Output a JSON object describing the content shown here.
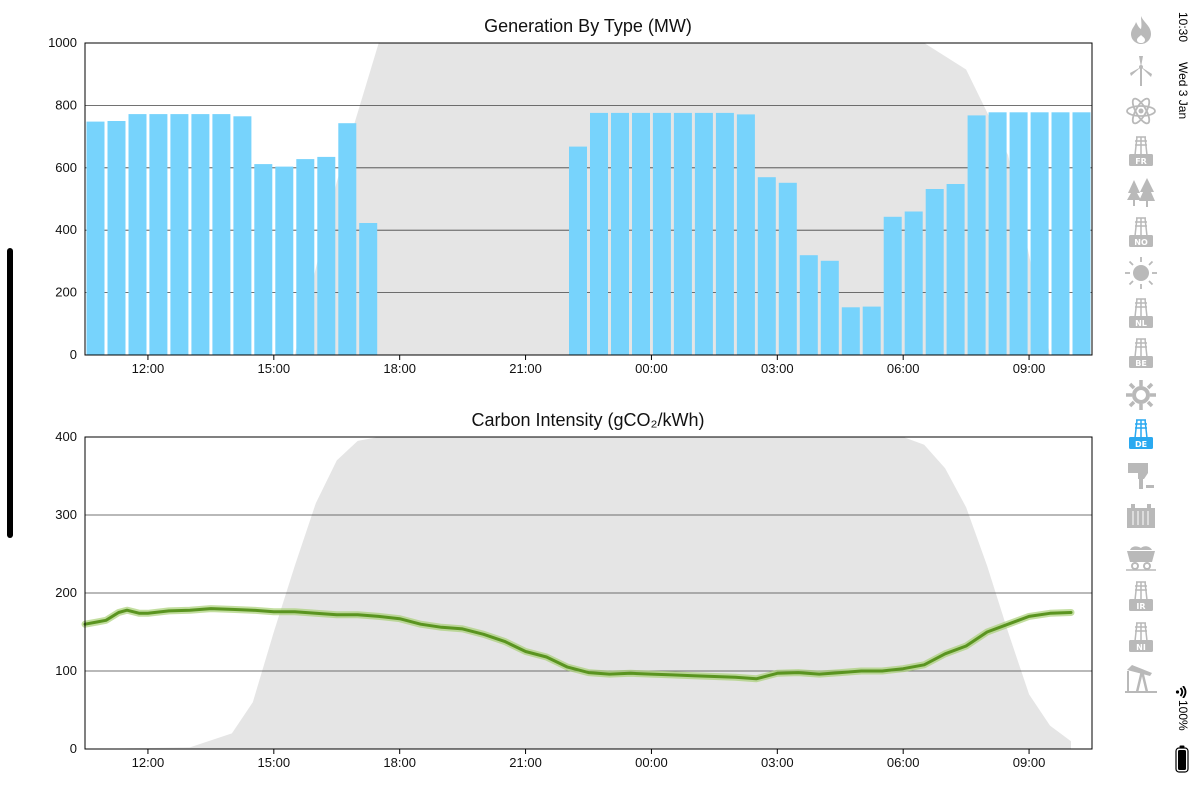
{
  "status_bar": {
    "time": "10:30",
    "date": "Wed 3 Jan",
    "battery": "100%"
  },
  "sidebar_icons": [
    {
      "name": "gas-flame-icon",
      "active": false
    },
    {
      "name": "wind-turbine-icon",
      "active": false
    },
    {
      "name": "nuclear-atom-icon",
      "active": false
    },
    {
      "name": "interconnector-pylon-icon",
      "code": "FR",
      "active": false
    },
    {
      "name": "biomass-trees-icon",
      "active": false
    },
    {
      "name": "interconnector-pylon-icon",
      "code": "NO",
      "active": false
    },
    {
      "name": "solar-sun-icon",
      "active": false
    },
    {
      "name": "interconnector-pylon-icon",
      "code": "NL",
      "active": false
    },
    {
      "name": "interconnector-pylon-icon",
      "code": "BE",
      "active": false
    },
    {
      "name": "hydro-wheel-icon",
      "active": false
    },
    {
      "name": "interconnector-pylon-icon",
      "code": "DE",
      "active": true
    },
    {
      "name": "pumped-storage-icon",
      "active": false
    },
    {
      "name": "battery-storage-icon",
      "active": false
    },
    {
      "name": "coal-wagon-icon",
      "active": false
    },
    {
      "name": "interconnector-pylon-icon",
      "code": "IR",
      "active": false
    },
    {
      "name": "interconnector-pylon-icon",
      "code": "NI",
      "active": false
    },
    {
      "name": "oil-pump-icon",
      "active": false
    }
  ],
  "colors": {
    "bar": "#77d3fc",
    "line": "#5a9420",
    "line_glow": "#a9d078",
    "night": "#e5e5e5",
    "active_icon": "#2aa9f0",
    "inactive_icon": "#b9b9b9"
  },
  "chart_data": [
    {
      "type": "bar",
      "title": "Generation By Type (MW)",
      "x_start": "10:30",
      "x_end": "10:30 (next day)",
      "interval_minutes": 30,
      "ylim": [
        0,
        1000
      ],
      "yticks": [
        0,
        200,
        400,
        600,
        800,
        1000
      ],
      "xticks": [
        "12:00",
        "15:00",
        "18:00",
        "21:00",
        "00:00",
        "03:00",
        "06:00",
        "09:00"
      ],
      "xtick_hours": [
        12,
        15,
        18,
        21,
        24,
        27,
        30,
        33
      ],
      "grid": true,
      "bar_start_hours": [
        10.5,
        11,
        11.5,
        12,
        12.5,
        13,
        13.5,
        14,
        14.5,
        15,
        15.5,
        16,
        16.5,
        17,
        17.5,
        18,
        18.5,
        19,
        19.5,
        20,
        20.5,
        21,
        21.5,
        22,
        22.5,
        23,
        23.5,
        24,
        24.5,
        25,
        25.5,
        26,
        26.5,
        27,
        27.5,
        28,
        28.5,
        29,
        29.5,
        30,
        30.5,
        31,
        31.5,
        32,
        32.5,
        33,
        33.5,
        34
      ],
      "values": [
        748,
        750,
        772,
        772,
        772,
        772,
        772,
        765,
        612,
        604,
        628,
        635,
        743,
        423,
        0,
        0,
        0,
        0,
        0,
        0,
        0,
        0,
        0,
        668,
        776,
        776,
        776,
        776,
        776,
        776,
        776,
        771,
        570,
        552,
        320,
        302,
        153,
        155,
        443,
        460,
        532,
        548,
        768,
        778,
        778,
        778,
        778,
        778
      ],
      "night_profile": {
        "hours": [
          10.5,
          14.5,
          15.5,
          16.5,
          17.5,
          20.5,
          23.5,
          26.5,
          29.5,
          30.5,
          31.5,
          32.5,
          33.5,
          34.5
        ],
        "values": [
          0,
          0,
          0,
          555,
          1000,
          1000,
          1000,
          1000,
          1000,
          1000,
          915,
          640,
          0,
          0
        ]
      }
    },
    {
      "type": "line",
      "title": "Carbon Intensity (gCO₂/kWh)",
      "ylim": [
        0,
        400
      ],
      "yticks": [
        0,
        100,
        200,
        300,
        400
      ],
      "xticks": [
        "12:00",
        "15:00",
        "18:00",
        "21:00",
        "00:00",
        "03:00",
        "06:00",
        "09:00"
      ],
      "xtick_hours": [
        12,
        15,
        18,
        21,
        24,
        27,
        30,
        33
      ],
      "grid": true,
      "x_hours": [
        10.5,
        10.8,
        11.0,
        11.3,
        11.5,
        11.8,
        12.0,
        12.5,
        13.0,
        13.5,
        14.0,
        14.5,
        15.0,
        15.5,
        16.0,
        16.5,
        17.0,
        17.5,
        18.0,
        18.5,
        19.0,
        19.5,
        20.0,
        20.5,
        21.0,
        21.5,
        22.0,
        22.5,
        23.0,
        23.5,
        24.0,
        24.5,
        25.0,
        25.5,
        26.0,
        26.5,
        27.0,
        27.5,
        28.0,
        28.5,
        29.0,
        29.5,
        30.0,
        30.5,
        31.0,
        31.5,
        32.0,
        32.5,
        33.0,
        33.5,
        34.0
      ],
      "values": [
        160,
        163,
        165,
        175,
        178,
        174,
        174,
        177,
        178,
        180,
        179,
        178,
        176,
        176,
        174,
        172,
        172,
        170,
        167,
        160,
        156,
        154,
        147,
        138,
        125,
        118,
        105,
        98,
        96,
        97,
        96,
        95,
        94,
        93,
        92,
        90,
        97,
        98,
        96,
        98,
        100,
        100,
        103,
        108,
        122,
        132,
        150,
        160,
        170,
        174,
        175
      ],
      "night_profile": {
        "hours": [
          10.5,
          13.0,
          14.0,
          14.5,
          15.0,
          15.5,
          16.0,
          16.5,
          17.0,
          17.5,
          18.0,
          21.0,
          24.0,
          27.0,
          30.0,
          30.5,
          31.0,
          31.5,
          32.0,
          32.5,
          33.0,
          33.5,
          34.0
        ],
        "values": [
          0,
          2,
          20,
          60,
          150,
          235,
          315,
          370,
          395,
          400,
          400,
          400,
          400,
          400,
          400,
          390,
          360,
          310,
          235,
          150,
          70,
          30,
          10
        ]
      }
    }
  ]
}
